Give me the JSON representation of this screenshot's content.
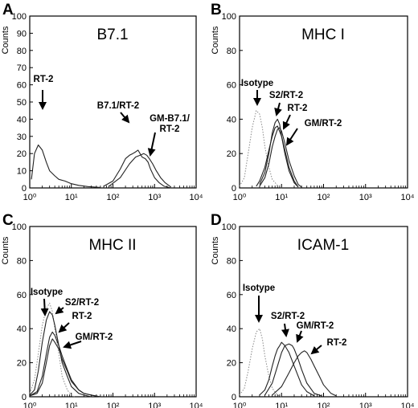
{
  "chart_data": [
    {
      "panel": "A",
      "title": "B7.1",
      "type": "line",
      "ylabel": "Counts",
      "xscale": "log",
      "xlim": [
        1,
        10000
      ],
      "ylim": [
        0,
        100
      ],
      "yticks": [
        0,
        10,
        20,
        30,
        40,
        50,
        60,
        70,
        80,
        90,
        100
      ],
      "xticks": [
        "10⁰",
        "10¹",
        "10²",
        "10³",
        "10⁴"
      ],
      "series": [
        {
          "name": "RT-2",
          "style": "solid",
          "x": [
            1.1,
            1.3,
            1.6,
            2,
            2.5,
            3,
            4,
            5,
            7,
            10,
            15,
            25,
            50
          ],
          "y": [
            5,
            20,
            25,
            22,
            15,
            10,
            7,
            5,
            4,
            2.5,
            1.5,
            0.8,
            0.3
          ]
        },
        {
          "name": "B7.1/RT-2",
          "style": "solid",
          "x": [
            60,
            100,
            150,
            200,
            250,
            300,
            350,
            400,
            500,
            600,
            700,
            800,
            1000,
            1300,
            1700,
            2500
          ],
          "y": [
            1,
            4,
            11,
            17,
            19,
            20,
            21,
            22,
            18,
            17,
            15,
            11,
            6,
            3,
            1,
            0
          ]
        },
        {
          "name": "GM-B7.1/RT-2",
          "style": "solid",
          "x": [
            80,
            150,
            250,
            350,
            450,
            550,
            650,
            750,
            900,
            1100,
            1400,
            1800,
            2500
          ],
          "y": [
            1,
            6,
            14,
            18,
            19,
            20,
            19,
            17,
            14,
            10,
            6,
            3,
            0.5
          ]
        }
      ],
      "annotations": [
        {
          "label_lines": [
            "RT-2"
          ],
          "x": 2
        },
        {
          "label_lines": [
            "B7.1/RT-2"
          ],
          "x": 400
        },
        {
          "label_lines": [
            "GM-B7.1/",
            "RT-2"
          ],
          "x": 700
        }
      ]
    },
    {
      "panel": "B",
      "title": "MHC I",
      "type": "line",
      "ylabel": "Counts",
      "xscale": "log",
      "xlim": [
        1,
        10000
      ],
      "ylim": [
        0,
        100
      ],
      "yticks": [
        0,
        20,
        40,
        60,
        80,
        100
      ],
      "xticks": [
        "10⁰",
        "10¹",
        "10²",
        "10³",
        "10⁴"
      ],
      "series": [
        {
          "name": "Isotype",
          "style": "dotted",
          "x": [
            1,
            1.3,
            1.6,
            2,
            2.5,
            3,
            3.5,
            4,
            5,
            6,
            8,
            10
          ],
          "y": [
            1,
            6,
            20,
            35,
            45,
            43,
            35,
            24,
            12,
            5,
            1.5,
            0
          ]
        },
        {
          "name": "S2/RT-2",
          "style": "solid",
          "x": [
            3,
            4,
            5,
            6,
            7,
            8,
            9,
            10,
            12,
            15,
            20,
            25
          ],
          "y": [
            2,
            9,
            20,
            32,
            38,
            40,
            37,
            30,
            20,
            10,
            3,
            0.5
          ]
        },
        {
          "name": "RT-2",
          "style": "solid",
          "x": [
            3,
            4,
            5,
            6,
            7,
            8,
            9,
            10,
            12,
            15,
            20,
            25,
            30
          ],
          "y": [
            1,
            6,
            14,
            24,
            30,
            34,
            35,
            33,
            26,
            16,
            7,
            2,
            0.5
          ]
        },
        {
          "name": "GM/RT-2",
          "style": "solid",
          "x": [
            2.5,
            3,
            4,
            5,
            6,
            7,
            8,
            10,
            12,
            15,
            20,
            25
          ],
          "y": [
            1,
            4,
            12,
            22,
            30,
            35,
            36,
            30,
            22,
            12,
            4,
            0.5
          ]
        }
      ],
      "annotations": [
        {
          "label_lines": [
            "Isotype"
          ],
          "x": 2.5
        },
        {
          "label_lines": [
            "S2/RT-2"
          ],
          "x": 7
        },
        {
          "label_lines": [
            "RT-2"
          ],
          "x": 9.5
        },
        {
          "label_lines": [
            "GM/RT-2"
          ],
          "x": 12
        }
      ]
    },
    {
      "panel": "C",
      "title": "MHC II",
      "type": "line",
      "ylabel": "Counts",
      "xscale": "log",
      "xlim": [
        1,
        10000
      ],
      "ylim": [
        0,
        100
      ],
      "yticks": [
        0,
        20,
        40,
        60,
        80,
        100
      ],
      "xticks": [
        "10⁰",
        "10¹",
        "10²",
        "10³",
        "10⁴"
      ],
      "series": [
        {
          "name": "Isotype",
          "style": "dotted",
          "x": [
            1,
            1.3,
            1.6,
            2,
            2.5,
            3,
            3.5,
            4,
            5,
            6,
            8,
            10,
            12
          ],
          "y": [
            2,
            10,
            25,
            42,
            52,
            55,
            50,
            40,
            25,
            12,
            4,
            1,
            0
          ]
        },
        {
          "name": "S2/RT-2",
          "style": "solid",
          "x": [
            1,
            1.3,
            1.6,
            2,
            2.5,
            3,
            3.5,
            4,
            5,
            6,
            8,
            10,
            15,
            20,
            30
          ],
          "y": [
            1,
            4,
            15,
            32,
            45,
            50,
            48,
            42,
            30,
            20,
            12,
            6,
            2,
            1,
            0
          ]
        },
        {
          "name": "RT-2",
          "style": "solid",
          "x": [
            1,
            1.5,
            2,
            2.5,
            3,
            3.5,
            4,
            5,
            6,
            8,
            10,
            15,
            20,
            30,
            50
          ],
          "y": [
            0.5,
            3,
            12,
            25,
            35,
            38,
            36,
            30,
            24,
            16,
            10,
            4,
            2,
            1,
            0
          ]
        },
        {
          "name": "GM/RT-2",
          "style": "solid",
          "x": [
            1,
            1.5,
            2,
            2.5,
            3,
            3.5,
            4,
            5,
            6,
            8,
            10,
            15,
            20,
            30,
            50
          ],
          "y": [
            0.5,
            2,
            8,
            20,
            30,
            34,
            32,
            28,
            22,
            15,
            9,
            4,
            2,
            1,
            0
          ]
        }
      ],
      "annotations": [
        {
          "label_lines": [
            "Isotype"
          ],
          "x": 2.2
        },
        {
          "label_lines": [
            "S2/RT-2"
          ],
          "x": 3
        },
        {
          "label_lines": [
            "RT-2"
          ],
          "x": 3.8
        },
        {
          "label_lines": [
            "GM/RT-2"
          ],
          "x": 5
        }
      ]
    },
    {
      "panel": "D",
      "title": "ICAM-1",
      "type": "line",
      "ylabel": "Counts",
      "xscale": "log",
      "xlim": [
        1,
        10000
      ],
      "ylim": [
        0,
        100
      ],
      "yticks": [
        0,
        20,
        40,
        60,
        80,
        100
      ],
      "xticks": [
        "10⁰",
        "10¹",
        "10²",
        "10³",
        "10⁴"
      ],
      "series": [
        {
          "name": "Isotype",
          "style": "dotted",
          "x": [
            1,
            1.3,
            1.6,
            2,
            2.5,
            3,
            3.5,
            4,
            5,
            6,
            8,
            10
          ],
          "y": [
            1,
            5,
            15,
            28,
            38,
            40,
            34,
            24,
            12,
            5,
            1,
            0
          ]
        },
        {
          "name": "S2/RT-2",
          "style": "solid",
          "x": [
            3,
            4,
            5,
            6,
            7,
            8,
            9,
            10,
            12,
            15,
            20,
            25,
            30,
            40,
            60
          ],
          "y": [
            1,
            4,
            10,
            18,
            24,
            28,
            30,
            32,
            30,
            26,
            18,
            12,
            7,
            3,
            0.5
          ]
        },
        {
          "name": "GM/RT-2",
          "style": "solid",
          "x": [
            4,
            6,
            8,
            10,
            12,
            15,
            18,
            20,
            25,
            30,
            40,
            60,
            90
          ],
          "y": [
            1,
            8,
            18,
            26,
            30,
            31,
            30,
            28,
            22,
            16,
            8,
            2,
            0.5
          ]
        },
        {
          "name": "RT-2",
          "style": "solid",
          "x": [
            6,
            10,
            15,
            20,
            25,
            30,
            35,
            40,
            50,
            60,
            80,
            100,
            150,
            200
          ],
          "y": [
            1,
            6,
            14,
            20,
            24,
            26,
            27,
            26,
            22,
            18,
            12,
            7,
            2,
            0.5
          ]
        }
      ],
      "annotations": [
        {
          "label_lines": [
            "Isotype"
          ],
          "x": 2.5
        },
        {
          "label_lines": [
            "S2/RT-2"
          ],
          "x": 11
        },
        {
          "label_lines": [
            "GM/RT-2"
          ],
          "x": 18
        },
        {
          "label_lines": [
            "RT-2"
          ],
          "x": 30
        }
      ]
    }
  ]
}
